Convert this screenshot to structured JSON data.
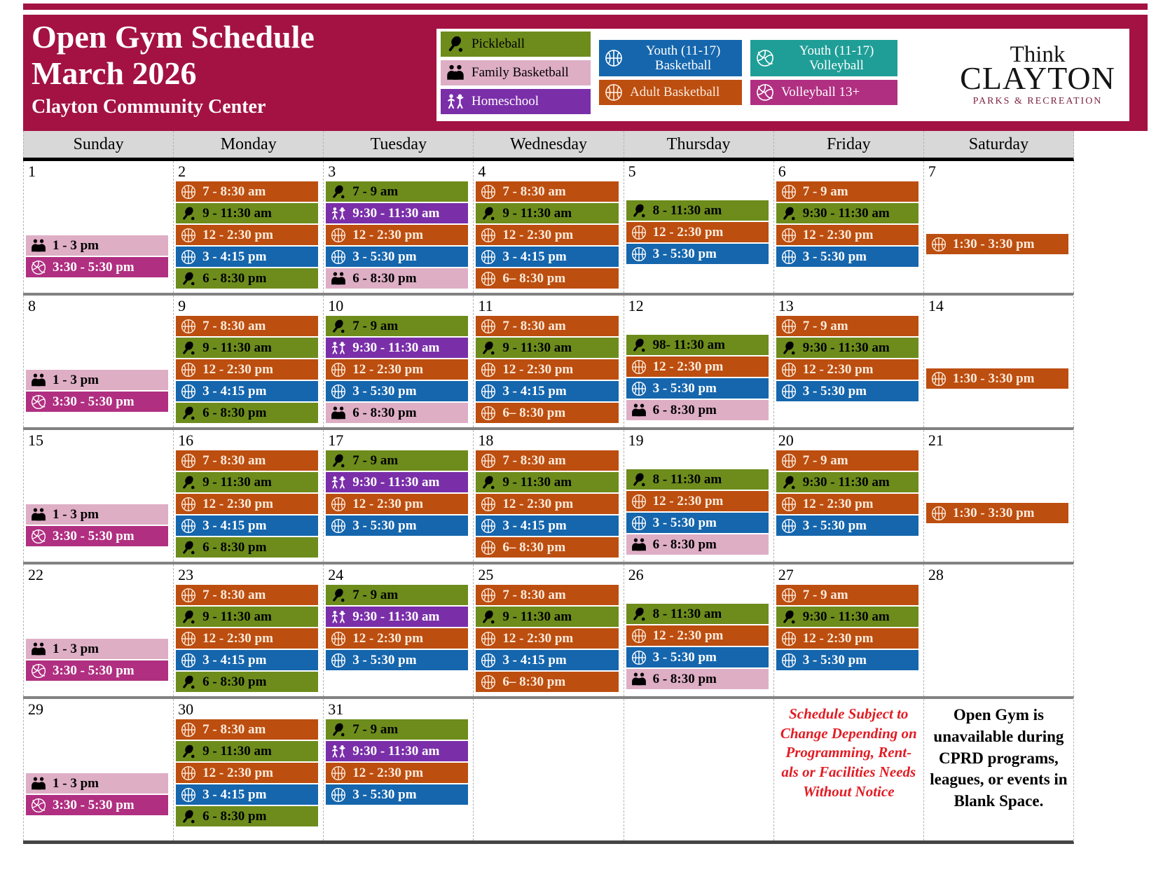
{
  "header": {
    "title_line1": "Open Gym Schedule",
    "title_line2": "March 2026",
    "subtitle": "Clayton Community Center",
    "logo": {
      "line1": "Think",
      "line2": "CLAYTON",
      "line3": "PARKS & RECREATION"
    }
  },
  "colors": {
    "maroon": "#a31243",
    "day_header_bg": "#d8d8d8",
    "grid_line": "#828282",
    "dash_line": "#b3b3b3",
    "note_red": "#e11c24"
  },
  "categories": {
    "pickleball": {
      "label": "Pickleball",
      "color": "#6d8c1c",
      "text": "#000000",
      "icon": "pickleball-paddle-icon"
    },
    "family-basketball": {
      "label": "Family Basketball",
      "color": "#deaec5",
      "text": "#000000",
      "icon": "family-icon"
    },
    "homeschool": {
      "label": "Homeschool",
      "color": "#7a2fa9",
      "text": "#ffffff",
      "icon": "children-icon"
    },
    "youth-basketball": {
      "label": "Youth (11-17) Basketball",
      "color": "#1566ad",
      "text": "#ffffff",
      "icon": "basketball-icon"
    },
    "adult-basketball": {
      "label": "Adult Basketball",
      "color": "#bc4e10",
      "text": "#fcebdb",
      "icon": "basketball-icon"
    },
    "youth-volleyball": {
      "label": "Youth (11-17) Volleyball",
      "color": "#1f9e97",
      "text": "#ffffff",
      "icon": "volleyball-icon"
    },
    "volleyball-13plus": {
      "label": "Volleyball 13+",
      "color": "#b02f81",
      "text": "#ffffff",
      "icon": "volleyball-icon"
    }
  },
  "legend_columns": [
    [
      {
        "category": "pickleball",
        "lines": [
          "Pickleball"
        ]
      },
      {
        "category": "family-basketball",
        "lines": [
          "Family Basketball"
        ]
      },
      {
        "category": "homeschool",
        "lines": [
          "Homeschool"
        ]
      }
    ],
    [
      {
        "category": "youth-basketball",
        "lines": [
          "Youth (11-17)",
          "Basketball"
        ]
      },
      {
        "category": "adult-basketball",
        "lines": [
          "Adult Basketball"
        ]
      }
    ],
    [
      {
        "category": "youth-volleyball",
        "lines": [
          "Youth (11-17)",
          "Volleyball"
        ]
      },
      {
        "category": "volleyball-13plus",
        "lines": [
          "Volleyball 13+"
        ]
      }
    ]
  ],
  "day_headers": [
    "Sunday",
    "Monday",
    "Tuesday",
    "Wednesday",
    "Thursday",
    "Friday",
    "Saturday"
  ],
  "weeks": [
    [
      {
        "date": "1",
        "events": [
          {
            "category": "family-basketball",
            "time": "1 - 3 pm"
          },
          {
            "category": "volleyball-13plus",
            "time": "3:30 - 5:30 pm"
          }
        ]
      },
      {
        "date": "2",
        "events": [
          {
            "category": "adult-basketball",
            "time": "7 - 8:30 am"
          },
          {
            "category": "pickleball",
            "time": "9 - 11:30 am"
          },
          {
            "category": "adult-basketball",
            "time": "12 - 2:30 pm"
          },
          {
            "category": "youth-basketball",
            "time": "3 - 4:15 pm"
          },
          {
            "category": "pickleball",
            "time": "6 - 8:30 pm"
          }
        ]
      },
      {
        "date": "3",
        "events": [
          {
            "category": "pickleball",
            "time": "7 - 9 am"
          },
          {
            "category": "homeschool",
            "time": "9:30 - 11:30 am"
          },
          {
            "category": "adult-basketball",
            "time": "12 - 2:30 pm"
          },
          {
            "category": "youth-basketball",
            "time": "3 - 5:30 pm"
          },
          {
            "category": "family-basketball",
            "time": "6 - 8:30 pm"
          }
        ]
      },
      {
        "date": "4",
        "events": [
          {
            "category": "adult-basketball",
            "time": "7 - 8:30 am"
          },
          {
            "category": "pickleball",
            "time": "9 - 11:30 am"
          },
          {
            "category": "adult-basketball",
            "time": "12 - 2:30 pm"
          },
          {
            "category": "youth-basketball",
            "time": "3 - 4:15 pm"
          },
          {
            "category": "adult-basketball",
            "time": "6– 8:30 pm"
          }
        ]
      },
      {
        "date": "5",
        "events": [
          {
            "category": "pickleball",
            "time": "8 - 11:30 am"
          },
          {
            "category": "adult-basketball",
            "time": "12 - 2:30 pm"
          },
          {
            "category": "youth-basketball",
            "time": "3 - 5:30 pm"
          }
        ]
      },
      {
        "date": "6",
        "events": [
          {
            "category": "adult-basketball",
            "time": "7 - 9 am"
          },
          {
            "category": "pickleball",
            "time": "9:30 - 11:30 am"
          },
          {
            "category": "adult-basketball",
            "time": "12 - 2:30 pm"
          },
          {
            "category": "youth-basketball",
            "time": "3 - 5:30 pm"
          }
        ]
      },
      {
        "date": "7",
        "events": [
          {
            "category": "adult-basketball",
            "time": "1:30 - 3:30 pm"
          }
        ]
      }
    ],
    [
      {
        "date": "8",
        "events": [
          {
            "category": "family-basketball",
            "time": "1 - 3 pm"
          },
          {
            "category": "volleyball-13plus",
            "time": "3:30 - 5:30 pm"
          }
        ]
      },
      {
        "date": "9",
        "events": [
          {
            "category": "adult-basketball",
            "time": "7 - 8:30 am"
          },
          {
            "category": "pickleball",
            "time": "9 - 11:30 am"
          },
          {
            "category": "adult-basketball",
            "time": "12 - 2:30 pm"
          },
          {
            "category": "youth-basketball",
            "time": "3 - 4:15 pm"
          },
          {
            "category": "pickleball",
            "time": "6 - 8:30 pm"
          }
        ]
      },
      {
        "date": "10",
        "events": [
          {
            "category": "pickleball",
            "time": "7 - 9 am"
          },
          {
            "category": "homeschool",
            "time": "9:30 - 11:30 am"
          },
          {
            "category": "adult-basketball",
            "time": "12 - 2:30 pm"
          },
          {
            "category": "youth-basketball",
            "time": "3 - 5:30 pm"
          },
          {
            "category": "family-basketball",
            "time": "6 - 8:30 pm"
          }
        ]
      },
      {
        "date": "11",
        "events": [
          {
            "category": "adult-basketball",
            "time": "7 - 8:30 am"
          },
          {
            "category": "pickleball",
            "time": "9 - 11:30 am"
          },
          {
            "category": "adult-basketball",
            "time": "12 - 2:30 pm"
          },
          {
            "category": "youth-basketball",
            "time": "3 - 4:15 pm"
          },
          {
            "category": "adult-basketball",
            "time": "6– 8:30 pm"
          }
        ]
      },
      {
        "date": "12",
        "events": [
          {
            "category": "pickleball",
            "time": "98- 11:30 am"
          },
          {
            "category": "adult-basketball",
            "time": "12 - 2:30 pm"
          },
          {
            "category": "youth-basketball",
            "time": "3 - 5:30 pm"
          },
          {
            "category": "family-basketball",
            "time": "6 - 8:30 pm"
          }
        ]
      },
      {
        "date": "13",
        "events": [
          {
            "category": "adult-basketball",
            "time": "7 - 9 am"
          },
          {
            "category": "pickleball",
            "time": "9:30 - 11:30 am"
          },
          {
            "category": "adult-basketball",
            "time": "12 - 2:30 pm"
          },
          {
            "category": "youth-basketball",
            "time": "3 - 5:30 pm"
          }
        ]
      },
      {
        "date": "14",
        "events": [
          {
            "category": "adult-basketball",
            "time": "1:30 - 3:30 pm"
          }
        ]
      }
    ],
    [
      {
        "date": "15",
        "events": [
          {
            "category": "family-basketball",
            "time": "1 - 3 pm"
          },
          {
            "category": "volleyball-13plus",
            "time": "3:30 - 5:30 pm"
          }
        ]
      },
      {
        "date": "16",
        "events": [
          {
            "category": "adult-basketball",
            "time": "7 - 8:30 am"
          },
          {
            "category": "pickleball",
            "time": "9 - 11:30 am"
          },
          {
            "category": "adult-basketball",
            "time": "12 - 2:30 pm"
          },
          {
            "category": "youth-basketball",
            "time": "3 - 4:15 pm"
          },
          {
            "category": "pickleball",
            "time": "6 - 8:30 pm"
          }
        ]
      },
      {
        "date": "17",
        "events": [
          {
            "category": "pickleball",
            "time": "7 - 9 am"
          },
          {
            "category": "homeschool",
            "time": "9:30 - 11:30 am"
          },
          {
            "category": "adult-basketball",
            "time": "12 - 2:30 pm"
          },
          {
            "category": "youth-basketball",
            "time": "3 - 5:30 pm"
          }
        ]
      },
      {
        "date": "18",
        "events": [
          {
            "category": "adult-basketball",
            "time": "7 - 8:30 am"
          },
          {
            "category": "pickleball",
            "time": "9 - 11:30 am"
          },
          {
            "category": "adult-basketball",
            "time": "12 - 2:30 pm"
          },
          {
            "category": "youth-basketball",
            "time": "3 - 4:15 pm"
          },
          {
            "category": "adult-basketball",
            "time": "6– 8:30 pm"
          }
        ]
      },
      {
        "date": "19",
        "events": [
          {
            "category": "pickleball",
            "time": "8 - 11:30 am"
          },
          {
            "category": "adult-basketball",
            "time": "12 - 2:30 pm"
          },
          {
            "category": "youth-basketball",
            "time": "3 - 5:30 pm"
          },
          {
            "category": "family-basketball",
            "time": "6 - 8:30 pm"
          }
        ]
      },
      {
        "date": "20",
        "events": [
          {
            "category": "adult-basketball",
            "time": "7 - 9 am"
          },
          {
            "category": "pickleball",
            "time": "9:30 - 11:30 am"
          },
          {
            "category": "adult-basketball",
            "time": "12 - 2:30 pm"
          },
          {
            "category": "youth-basketball",
            "time": "3 - 5:30 pm"
          }
        ]
      },
      {
        "date": "21",
        "events": [
          {
            "category": "adult-basketball",
            "time": "1:30 - 3:30 pm"
          }
        ]
      }
    ],
    [
      {
        "date": "22",
        "events": [
          {
            "category": "family-basketball",
            "time": "1 - 3 pm"
          },
          {
            "category": "volleyball-13plus",
            "time": "3:30 - 5:30 pm"
          }
        ]
      },
      {
        "date": "23",
        "events": [
          {
            "category": "adult-basketball",
            "time": "7 - 8:30 am"
          },
          {
            "category": "pickleball",
            "time": "9 - 11:30 am"
          },
          {
            "category": "adult-basketball",
            "time": "12 - 2:30 pm"
          },
          {
            "category": "youth-basketball",
            "time": "3 - 4:15 pm"
          },
          {
            "category": "pickleball",
            "time": "6 - 8:30 pm"
          }
        ]
      },
      {
        "date": "24",
        "events": [
          {
            "category": "pickleball",
            "time": "7 - 9 am"
          },
          {
            "category": "homeschool",
            "time": "9:30 - 11:30 am"
          },
          {
            "category": "adult-basketball",
            "time": "12 - 2:30 pm"
          },
          {
            "category": "youth-basketball",
            "time": "3 - 5:30 pm"
          }
        ]
      },
      {
        "date": "25",
        "events": [
          {
            "category": "adult-basketball",
            "time": "7 - 8:30 am"
          },
          {
            "category": "pickleball",
            "time": "9 - 11:30 am"
          },
          {
            "category": "adult-basketball",
            "time": "12 - 2:30 pm"
          },
          {
            "category": "youth-basketball",
            "time": "3 - 4:15 pm"
          },
          {
            "category": "adult-basketball",
            "time": "6– 8:30 pm"
          }
        ]
      },
      {
        "date": "26",
        "events": [
          {
            "category": "pickleball",
            "time": "8 - 11:30 am"
          },
          {
            "category": "adult-basketball",
            "time": "12 - 2:30 pm"
          },
          {
            "category": "youth-basketball",
            "time": "3 - 5:30 pm"
          },
          {
            "category": "family-basketball",
            "time": "6 - 8:30 pm"
          }
        ]
      },
      {
        "date": "27",
        "events": [
          {
            "category": "adult-basketball",
            "time": "7 - 9 am"
          },
          {
            "category": "pickleball",
            "time": "9:30 - 11:30 am"
          },
          {
            "category": "adult-basketball",
            "time": "12 - 2:30 pm"
          },
          {
            "category": "youth-basketball",
            "time": "3 - 5:30 pm"
          }
        ]
      },
      {
        "date": "28",
        "events": []
      }
    ],
    [
      {
        "date": "29",
        "events": [
          {
            "category": "family-basketball",
            "time": "1 - 3 pm"
          },
          {
            "category": "volleyball-13plus",
            "time": "3:30 - 5:30 pm"
          }
        ]
      },
      {
        "date": "30",
        "events": [
          {
            "category": "adult-basketball",
            "time": "7 - 8:30 am"
          },
          {
            "category": "pickleball",
            "time": "9 - 11:30 am"
          },
          {
            "category": "adult-basketball",
            "time": "12 - 2:30 pm"
          },
          {
            "category": "youth-basketball",
            "time": "3 - 4:15 pm"
          },
          {
            "category": "pickleball",
            "time": "6 - 8:30 pm"
          }
        ]
      },
      {
        "date": "31",
        "events": [
          {
            "category": "pickleball",
            "time": "7 - 9 am"
          },
          {
            "category": "homeschool",
            "time": "9:30 - 11:30 am"
          },
          {
            "category": "adult-basketball",
            "time": "12 - 2:30 pm"
          },
          {
            "category": "youth-basketball",
            "time": "3 - 5:30 pm"
          }
        ]
      },
      {},
      {},
      {
        "note": "Schedule Subject to Change Depending on Programming, Rent-als or Facilities Needs Without Notice",
        "style": "red"
      },
      {
        "note": "Open Gym is unavailable during CPRD programs, leagues, or events in Blank Space.",
        "style": "black"
      }
    ]
  ]
}
